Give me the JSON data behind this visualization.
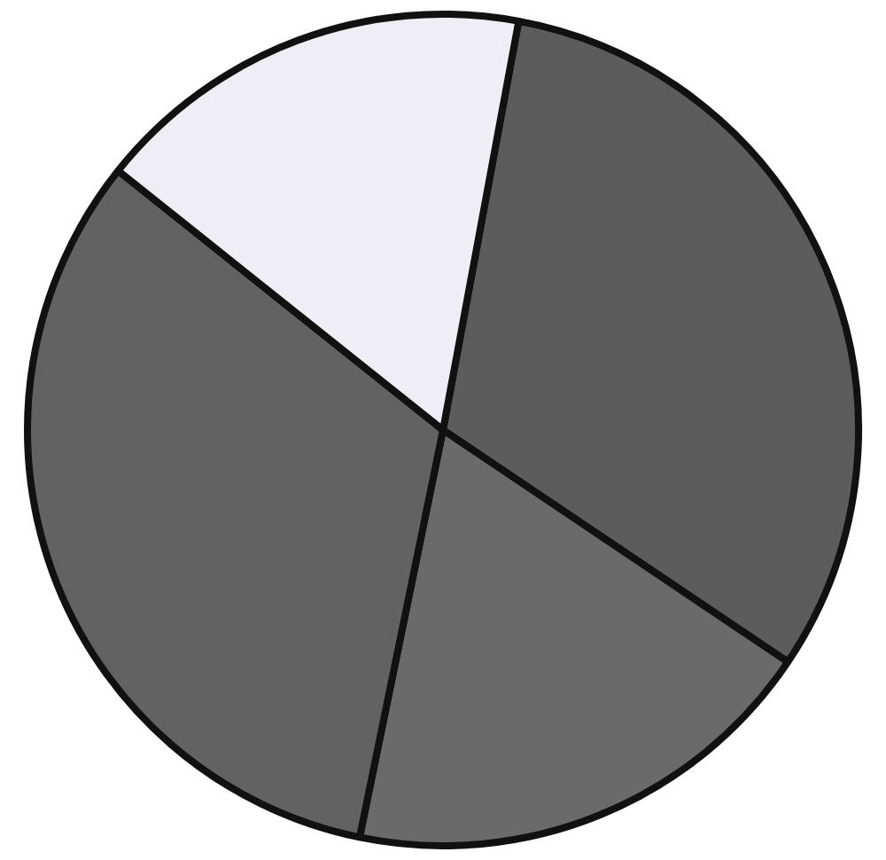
{
  "chart_data": {
    "type": "pie",
    "categories": [
      null,
      null,
      null,
      null
    ],
    "values": [
      31.5,
      18.8,
      32.5,
      17.2
    ],
    "colors": [
      "#5c5c5c",
      "#6a6a6a",
      "#626262",
      "#eeeef4"
    ]
  }
}
